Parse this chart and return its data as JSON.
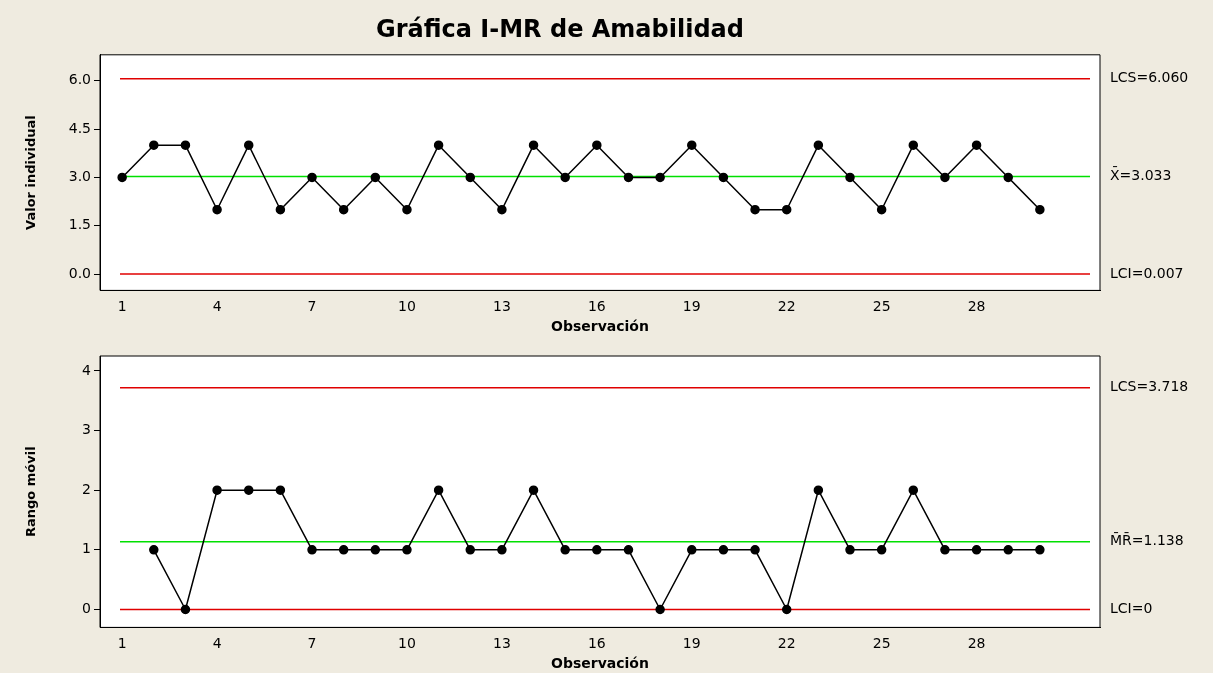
{
  "chart_data": [
    {
      "type": "line",
      "title": "Gráfica I-MR de Amabilidad",
      "xlabel": "Observación",
      "ylabel": "Valor individual",
      "marker": "circle",
      "line_style": "solid",
      "x": [
        1,
        2,
        3,
        4,
        5,
        6,
        7,
        8,
        9,
        10,
        11,
        12,
        13,
        14,
        15,
        16,
        17,
        18,
        19,
        20,
        21,
        22,
        23,
        24,
        25,
        26,
        27,
        28,
        29,
        30
      ],
      "series": [
        {
          "color": "#000000",
          "values": [
            3,
            4,
            4,
            2,
            4,
            2,
            3,
            2,
            3,
            2,
            4,
            3,
            2,
            4,
            3,
            4,
            3,
            3,
            4,
            3,
            2,
            2,
            4,
            3,
            2,
            4,
            3,
            4,
            3,
            2
          ]
        }
      ],
      "xlim": [
        0.3,
        31.9
      ],
      "xticks": [
        1,
        4,
        7,
        10,
        13,
        16,
        19,
        22,
        25,
        28
      ],
      "ylim": [
        -0.5,
        6.8
      ],
      "yticks": [
        {
          "value": 0,
          "label": "0.0"
        },
        {
          "value": 1.5,
          "label": "1.5"
        },
        {
          "value": 3,
          "label": "3.0"
        },
        {
          "value": 4.5,
          "label": "4.5"
        },
        {
          "value": 6,
          "label": "6.0"
        }
      ],
      "ref_lines": [
        {
          "axis": "y",
          "value": 6.06,
          "label": "LCS=6.060",
          "color": "#e00000"
        },
        {
          "axis": "y",
          "value": 3.033,
          "label": "X̄=3.033",
          "color": "#00e000"
        },
        {
          "axis": "y",
          "value": 0.007,
          "label": "LCI=0.007",
          "color": "#e00000"
        }
      ]
    },
    {
      "type": "line",
      "xlabel": "Observación",
      "ylabel": "Rango móvil",
      "marker": "circle",
      "line_style": "solid",
      "series": [
        {
          "color": "#000000",
          "x": [
            2,
            3,
            4,
            5,
            6,
            7,
            8,
            9,
            10,
            11,
            12,
            13,
            14,
            15,
            16,
            17,
            18,
            19,
            20,
            21,
            22,
            23,
            24,
            25,
            26,
            27,
            28,
            29,
            30
          ],
          "values": [
            1,
            0,
            2,
            2,
            2,
            1,
            1,
            1,
            1,
            2,
            1,
            1,
            2,
            1,
            1,
            1,
            0,
            1,
            1,
            1,
            0,
            2,
            1,
            1,
            2,
            1,
            1,
            1,
            1
          ]
        }
      ],
      "xlim": [
        0.3,
        31.9
      ],
      "xticks": [
        1,
        4,
        7,
        10,
        13,
        16,
        19,
        22,
        25,
        28
      ],
      "ylim": [
        -0.3,
        4.25
      ],
      "yticks": [
        0,
        1,
        2,
        3,
        4
      ],
      "ref_lines": [
        {
          "axis": "y",
          "value": 3.718,
          "label": "LCS=3.718",
          "color": "#e00000"
        },
        {
          "axis": "y",
          "value": 1.138,
          "label": "M̄R̄=1.138",
          "color": "#00e000"
        },
        {
          "axis": "y",
          "value": 0,
          "label": "LCI=0",
          "color": "#e00000"
        }
      ]
    }
  ]
}
